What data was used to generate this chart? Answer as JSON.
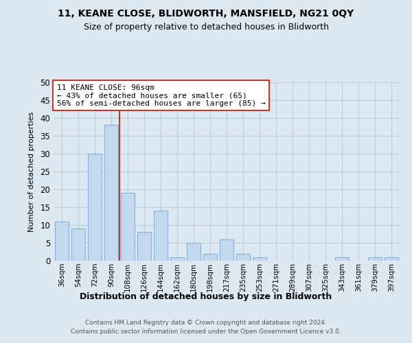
{
  "title1": "11, KEANE CLOSE, BLIDWORTH, MANSFIELD, NG21 0QY",
  "title2": "Size of property relative to detached houses in Blidworth",
  "xlabel": "Distribution of detached houses by size in Blidworth",
  "ylabel": "Number of detached properties",
  "categories": [
    "36sqm",
    "54sqm",
    "72sqm",
    "90sqm",
    "108sqm",
    "126sqm",
    "144sqm",
    "162sqm",
    "180sqm",
    "198sqm",
    "217sqm",
    "235sqm",
    "253sqm",
    "271sqm",
    "289sqm",
    "307sqm",
    "325sqm",
    "343sqm",
    "361sqm",
    "379sqm",
    "397sqm"
  ],
  "values": [
    11,
    9,
    30,
    38,
    19,
    8,
    14,
    1,
    5,
    2,
    6,
    2,
    1,
    0,
    0,
    0,
    0,
    1,
    0,
    1,
    1
  ],
  "bar_color": "#c5d9ee",
  "bar_edge_color": "#8ab0d8",
  "vline_color": "#c0392b",
  "vline_x": 3.5,
  "annotation_title": "11 KEANE CLOSE: 96sqm",
  "annotation_line1": "← 43% of detached houses are smaller (65)",
  "annotation_line2": "56% of semi-detached houses are larger (85) →",
  "annotation_box_color": "#c0392b",
  "ylim": [
    0,
    50
  ],
  "yticks": [
    0,
    5,
    10,
    15,
    20,
    25,
    30,
    35,
    40,
    45,
    50
  ],
  "footer_line1": "Contains HM Land Registry data © Crown copyright and database right 2024.",
  "footer_line2": "Contains public sector information licensed under the Open Government Licence v3.0.",
  "bg_color": "#dde8f0",
  "plot_bg_color": "#dde8f0",
  "grid_color": "#b8cfe0"
}
